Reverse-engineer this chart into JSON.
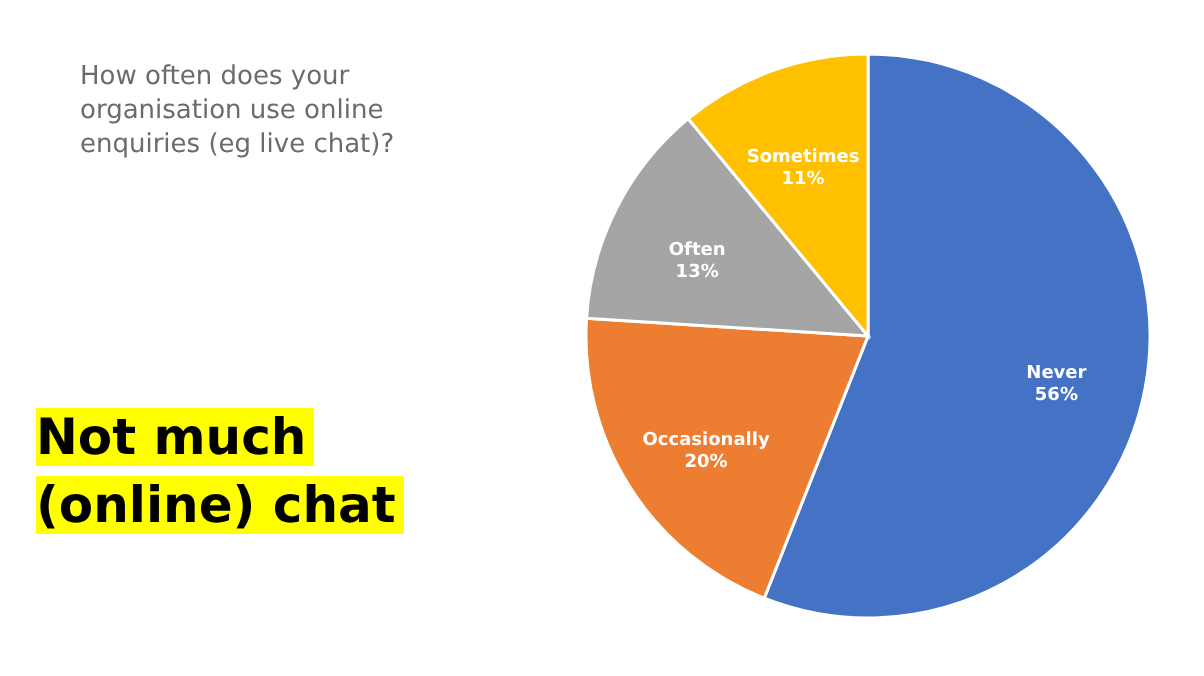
{
  "chart_data": {
    "type": "pie",
    "title": "How often does your organisation use online enquiries (eg live chat)?",
    "annotations": [
      "Not much (online) chat"
    ],
    "categories": [
      "Never",
      "Occasionally",
      "Often",
      "Sometimes"
    ],
    "values": [
      56,
      20,
      13,
      11
    ],
    "value_labels": [
      "56%",
      "20%",
      "13%",
      "11%"
    ],
    "colors": [
      "#4472c4",
      "#ed7d31",
      "#a5a5a5",
      "#ffc000"
    ],
    "legend": false
  }
}
